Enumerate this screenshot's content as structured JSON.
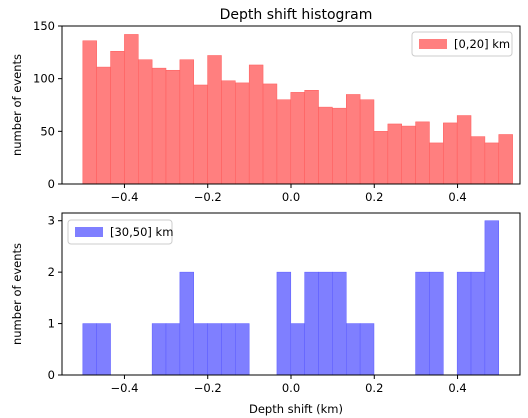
{
  "chart_data": [
    {
      "type": "bar",
      "title": "Depth shift histogram",
      "xlabel": "",
      "ylabel": "number of events",
      "xlim": [
        -0.55,
        0.55
      ],
      "ylim": [
        0,
        150
      ],
      "xticks": [
        -0.4,
        -0.2,
        0.0,
        0.2,
        0.4
      ],
      "xtick_labels": [
        "−0.4",
        "−0.2",
        "0.0",
        "0.2",
        "0.4"
      ],
      "yticks": [
        0,
        50,
        100,
        150
      ],
      "ytick_labels": [
        "0",
        "50",
        "100",
        "150"
      ],
      "bin_start": -0.5,
      "bin_width": 0.0333,
      "series": [
        {
          "name": "[0,20] km",
          "color": "#ff7f7f",
          "values": [
            136,
            111,
            126,
            142,
            118,
            110,
            108,
            118,
            94,
            122,
            98,
            96,
            113,
            95,
            80,
            87,
            89,
            73,
            72,
            85,
            80,
            50,
            57,
            55,
            59,
            39,
            58,
            65,
            45,
            39,
            47
          ]
        }
      ],
      "legend": "top-right"
    },
    {
      "type": "bar",
      "title": "",
      "xlabel": "Depth shift (km)",
      "ylabel": "number of events",
      "xlim": [
        -0.55,
        0.55
      ],
      "ylim": [
        0,
        3.15
      ],
      "xticks": [
        -0.4,
        -0.2,
        0.0,
        0.2,
        0.4
      ],
      "xtick_labels": [
        "−0.4",
        "−0.2",
        "0.0",
        "0.2",
        "0.4"
      ],
      "yticks": [
        0,
        1,
        2,
        3
      ],
      "ytick_labels": [
        "0",
        "1",
        "2",
        "3"
      ],
      "bin_start": -0.5,
      "bin_width": 0.0333,
      "series": [
        {
          "name": "[30,50] km",
          "color": "#7f7fff",
          "values": [
            1,
            1,
            0,
            0,
            0,
            1,
            1,
            2,
            1,
            1,
            1,
            1,
            0,
            0,
            2,
            1,
            2,
            2,
            2,
            1,
            1,
            0,
            0,
            0,
            2,
            2,
            0,
            2,
            2,
            3,
            0
          ]
        }
      ],
      "legend": "top-left"
    }
  ]
}
